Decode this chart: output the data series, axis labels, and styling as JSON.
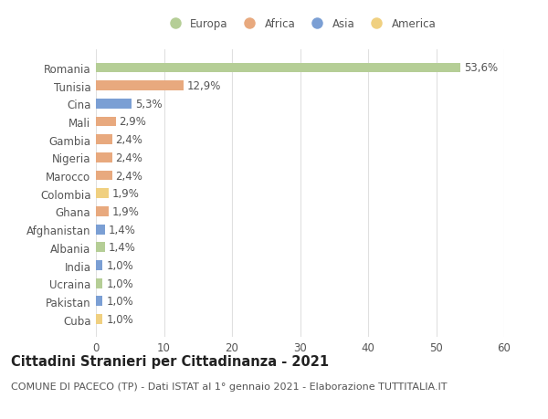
{
  "countries": [
    "Romania",
    "Tunisia",
    "Cina",
    "Mali",
    "Gambia",
    "Nigeria",
    "Marocco",
    "Colombia",
    "Ghana",
    "Afghanistan",
    "Albania",
    "India",
    "Ucraina",
    "Pakistan",
    "Cuba"
  ],
  "values": [
    53.6,
    12.9,
    5.3,
    2.9,
    2.4,
    2.4,
    2.4,
    1.9,
    1.9,
    1.4,
    1.4,
    1.0,
    1.0,
    1.0,
    1.0
  ],
  "labels": [
    "53,6%",
    "12,9%",
    "5,3%",
    "2,9%",
    "2,4%",
    "2,4%",
    "2,4%",
    "1,9%",
    "1,9%",
    "1,4%",
    "1,4%",
    "1,0%",
    "1,0%",
    "1,0%",
    "1,0%"
  ],
  "continents": [
    "Europa",
    "Africa",
    "Asia",
    "Africa",
    "Africa",
    "Africa",
    "Africa",
    "America",
    "Africa",
    "Asia",
    "Europa",
    "Asia",
    "Europa",
    "Asia",
    "America"
  ],
  "continent_colors": {
    "Europa": "#b5ce96",
    "Africa": "#e8a97e",
    "Asia": "#7b9fd4",
    "America": "#f0d080"
  },
  "legend_order": [
    "Europa",
    "Africa",
    "Asia",
    "America"
  ],
  "title": "Cittadini Stranieri per Cittadinanza - 2021",
  "subtitle": "COMUNE DI PACECO (TP) - Dati ISTAT al 1° gennaio 2021 - Elaborazione TUTTITALIA.IT",
  "xlim": [
    0,
    60
  ],
  "xticks": [
    0,
    10,
    20,
    30,
    40,
    50,
    60
  ],
  "bg_color": "#ffffff",
  "grid_color": "#e0e0e0",
  "bar_height": 0.55,
  "label_fontsize": 8.5,
  "tick_fontsize": 8.5,
  "title_fontsize": 10.5,
  "subtitle_fontsize": 8
}
